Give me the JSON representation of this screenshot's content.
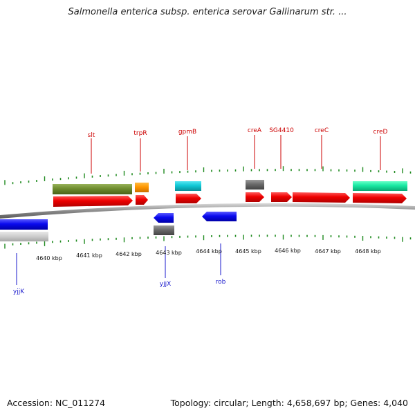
{
  "title": "Salmonella enterica subsp. enterica serovar Gallinarum str. ...",
  "footer": {
    "accession": "Accession: NC_011274",
    "summary": "Topology: circular; Length: 4,658,697 bp; Genes: 4,040"
  },
  "colors": {
    "forward_label": "#cc0000",
    "reverse_label": "#1a1acc",
    "tick": "#1f8a1f",
    "backbone": "#8a8a8a"
  },
  "scale_labels": [
    "4640 kbp",
    "4641 kbp",
    "4642 kbp",
    "4643 kbp",
    "4644 kbp",
    "4645 kbp",
    "4646 kbp",
    "4647 kbp",
    "4648 kbp"
  ],
  "gene_labels_top": [
    "slt",
    "trpR",
    "gpmB",
    "creA",
    "SG4410",
    "creC",
    "creD"
  ],
  "gene_labels_bottom": [
    "yjjK",
    "yjjX",
    "rob"
  ]
}
